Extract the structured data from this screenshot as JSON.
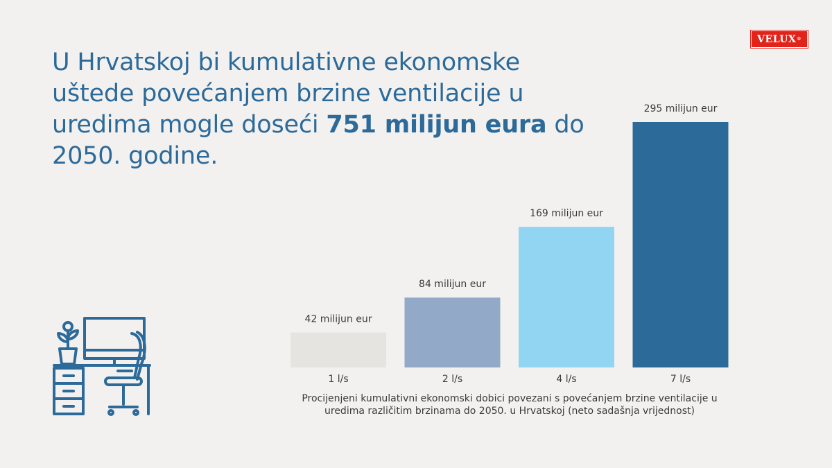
{
  "headline": {
    "text_before": "U Hrvatskoj bi kumulativne ekonomske uštede povećanjem brzine ventilacije u uredima mogle doseći ",
    "highlight": "751 milijun eura",
    "text_after": " do 2050. godine."
  },
  "logo": {
    "text": "VELUX",
    "mark": "®"
  },
  "icons": {
    "illustration": "office-desk-with-computer-and-chair-icon"
  },
  "caption": "Procijenjeni kumulativni ekonomski dobici povezani s povećanjem brzine ventilacije u uredima različitim brzinama do 2050. u Hrvatskoj (neto sadašnja vrijednost)",
  "chart_data": {
    "type": "bar",
    "categories": [
      "1 l/s",
      "2 l/s",
      "4 l/s",
      "7 l/s"
    ],
    "values": [
      42,
      84,
      169,
      295
    ],
    "value_labels": [
      "42 milijun eur",
      "84 milijun eur",
      "169 milijun eur",
      "295 milijun eur"
    ],
    "bar_colors": [
      "#e6e4e1",
      "#92a9c8",
      "#91d5f3",
      "#2c6a9a"
    ],
    "title": "",
    "xlabel": "",
    "ylabel": "",
    "ylim": [
      0,
      295
    ],
    "grid": false,
    "legend": "none"
  },
  "colors": {
    "accent": "#2c6a9a",
    "background": "#f3f1ef",
    "brand": "#e2231a"
  }
}
